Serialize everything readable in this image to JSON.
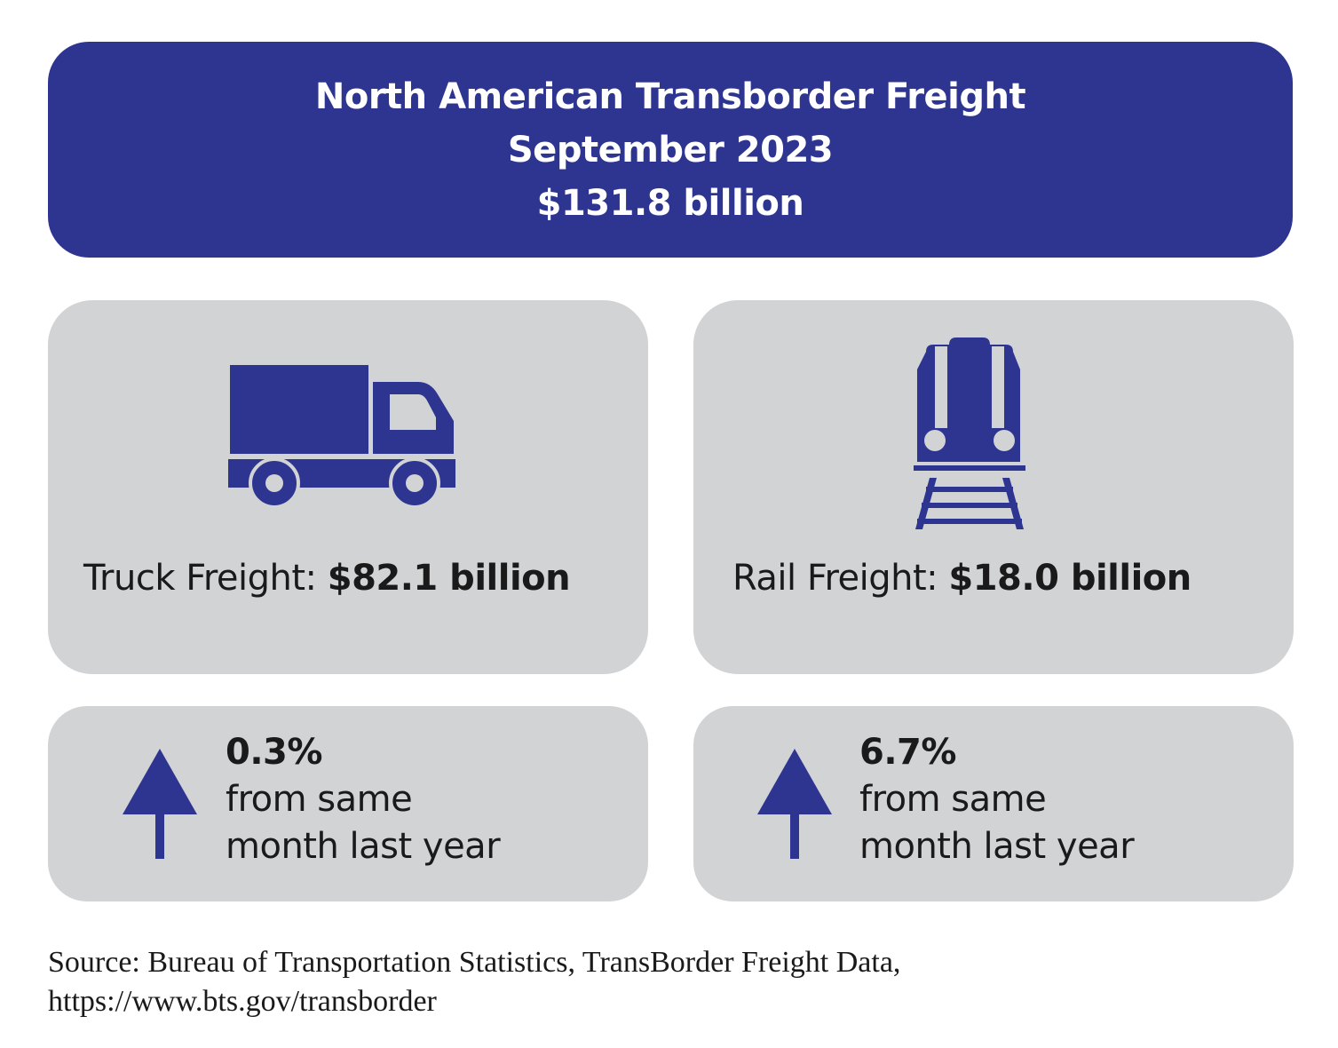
{
  "header": {
    "title": "North American Transborder Freight",
    "period": "September 2023",
    "total": "$131.8 billion"
  },
  "truck": {
    "label": "Truck Freight:",
    "value": "$82.1 billion",
    "icon": "truck-icon",
    "change": "0.3%",
    "change_direction": "up",
    "change_desc_1": "from same",
    "change_desc_2": "month last year"
  },
  "rail": {
    "label": "Rail Freight:",
    "value": "$18.0 billion",
    "icon": "train-icon",
    "change": "6.7%",
    "change_direction": "up",
    "change_desc_1": "from same",
    "change_desc_2": "month last year"
  },
  "source": {
    "line1": "Source: Bureau of Transportation Statistics, TransBorder Freight Data,",
    "line2": "https://www.bts.gov/transborder"
  },
  "colors": {
    "accent": "#2e3591",
    "card": "#d2d3d5",
    "text": "#1a1a1a"
  }
}
